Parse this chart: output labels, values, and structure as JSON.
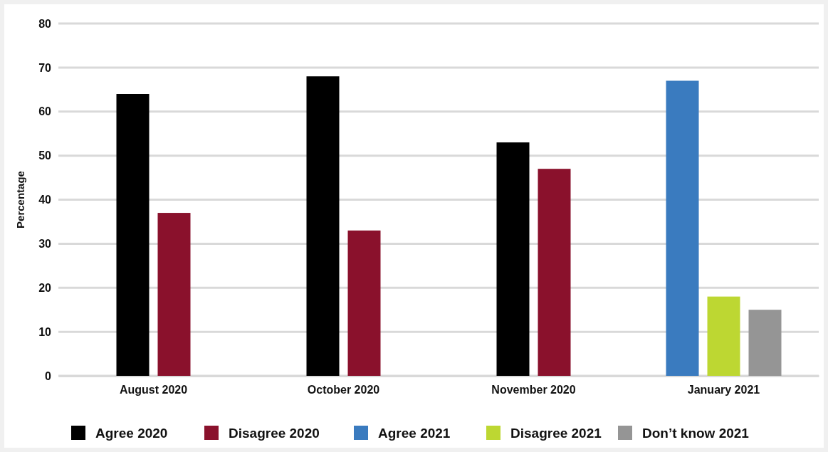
{
  "chart_data": {
    "type": "bar",
    "ylabel": "Percentage",
    "categories": [
      "August 2020",
      "October 2020",
      "November 2020",
      "January 2021"
    ],
    "series": [
      {
        "name": "Agree 2020",
        "color": "#000000",
        "values": [
          64,
          68,
          53,
          null
        ]
      },
      {
        "name": "Disagree 2020",
        "color": "#8a112c",
        "values": [
          37,
          33,
          47,
          null
        ]
      },
      {
        "name": "Agree 2021",
        "color": "#3a7bbf",
        "values": [
          null,
          null,
          null,
          67
        ]
      },
      {
        "name": "Disagree 2021",
        "color": "#bdd732",
        "values": [
          null,
          null,
          null,
          18
        ]
      },
      {
        "name": "Don’t know 2021",
        "color": "#959595",
        "values": [
          null,
          null,
          null,
          15
        ]
      }
    ],
    "ylim": [
      0,
      80
    ],
    "yticks": [
      0,
      10,
      20,
      30,
      40,
      50,
      60,
      70,
      80
    ],
    "grid": "y",
    "legend": "bottom"
  }
}
